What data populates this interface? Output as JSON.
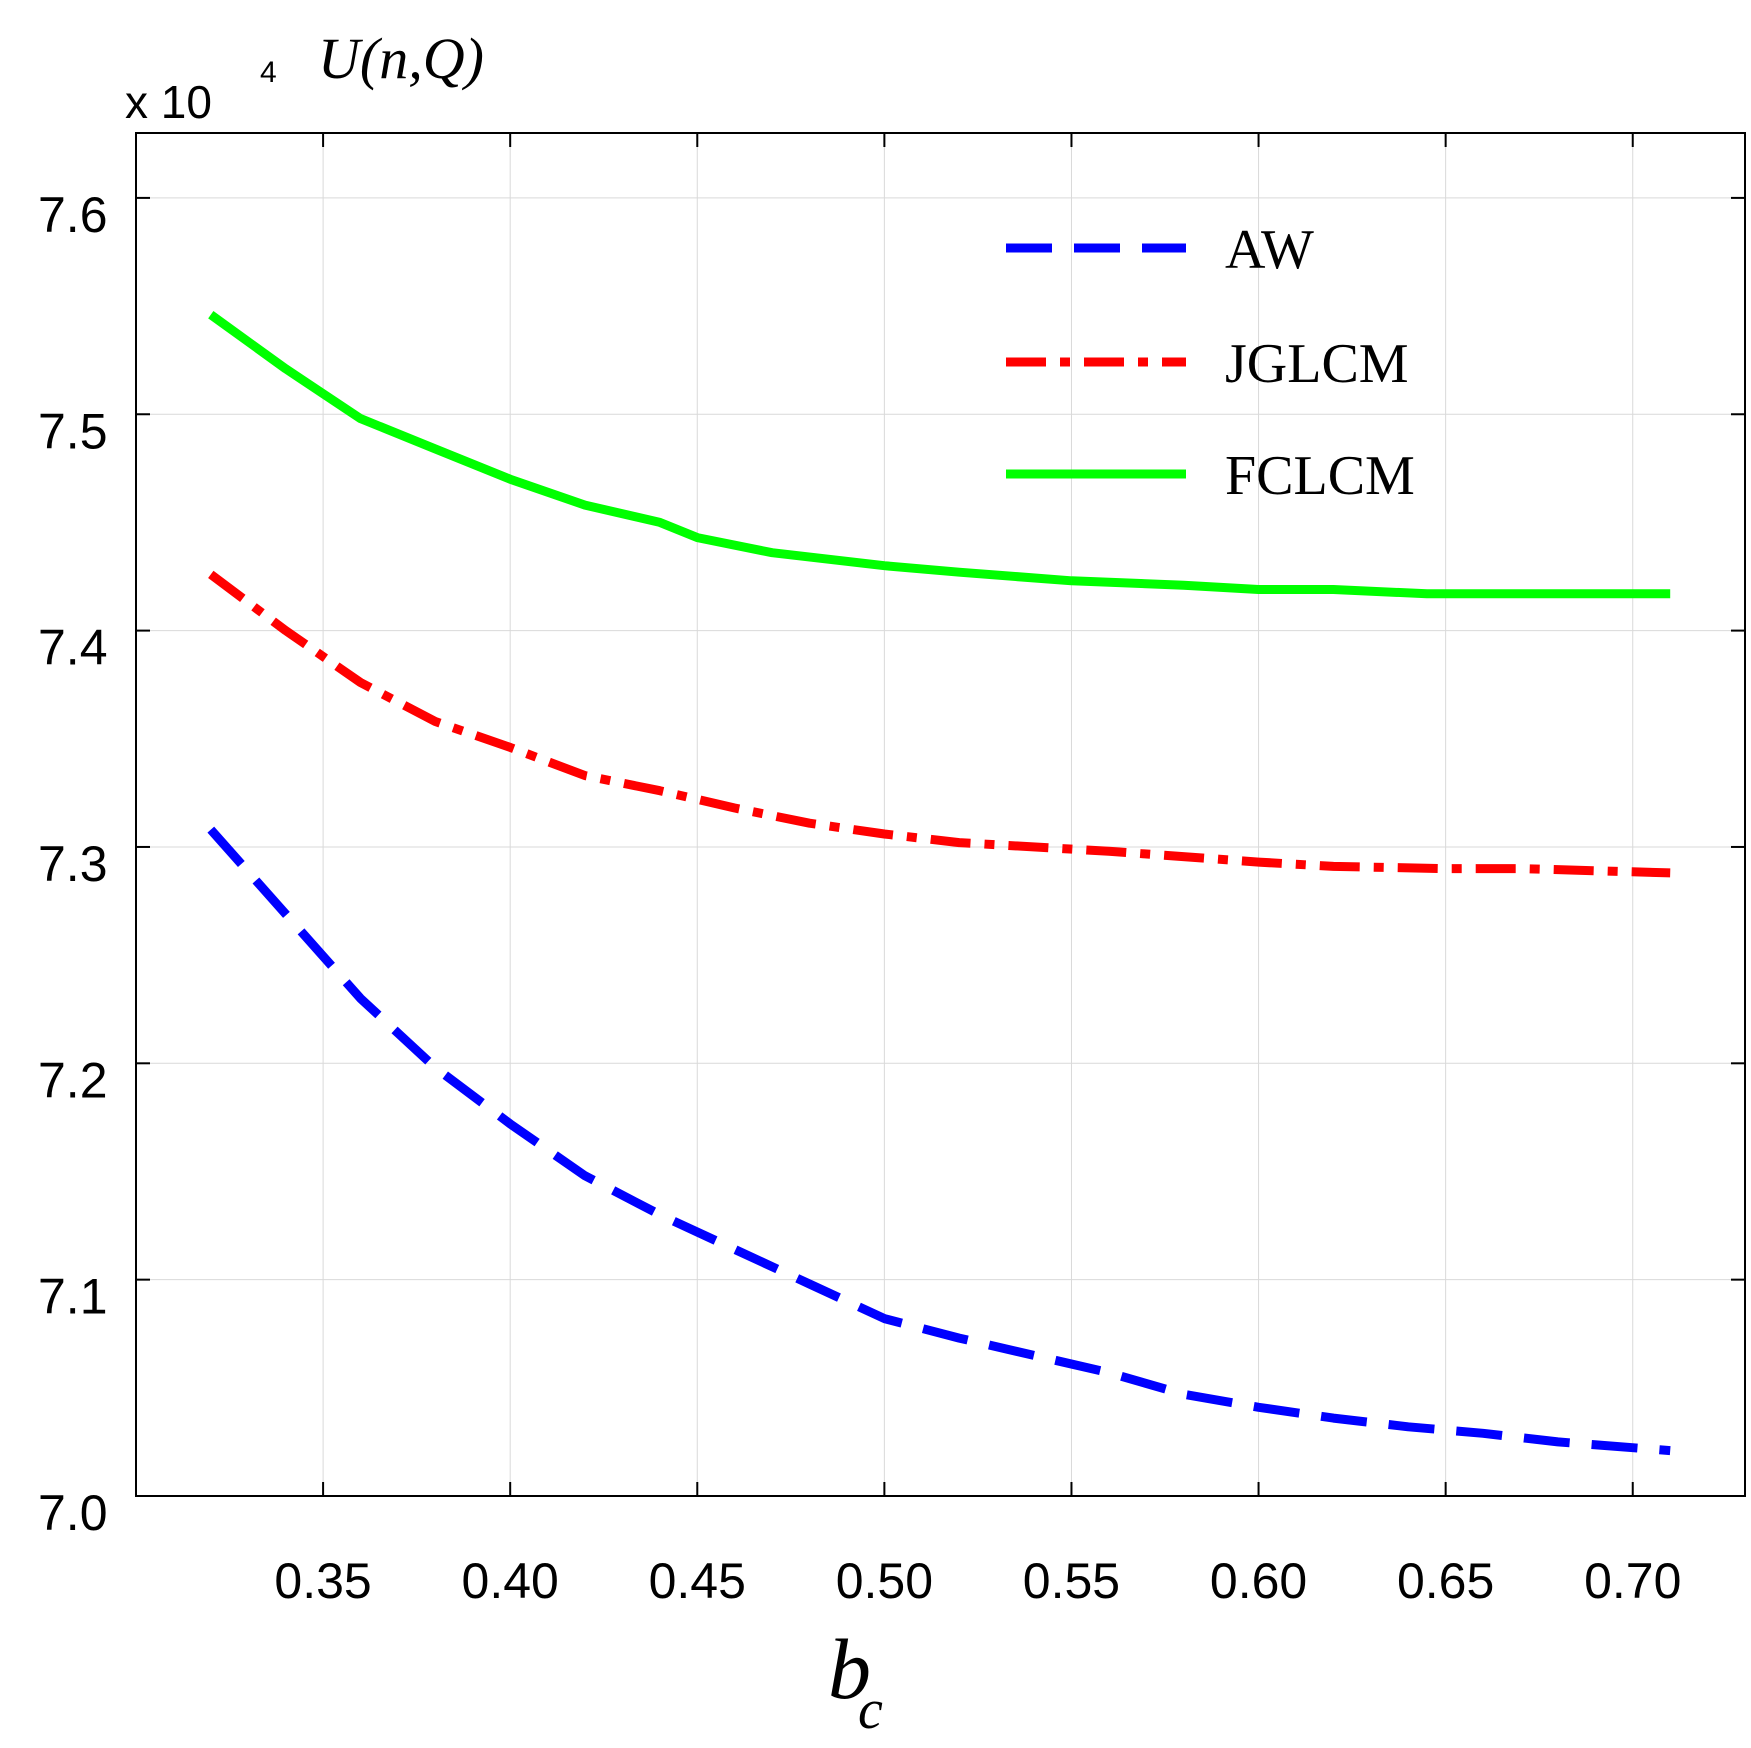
{
  "chart_data": {
    "type": "line",
    "title": "",
    "ylabel": "U(n,Q)",
    "y_scale_label": "x 10",
    "y_scale_exponent": "4",
    "xlabel_main": "b",
    "xlabel_sub": "c",
    "xlim": [
      0.3,
      0.73
    ],
    "ylim": [
      7.0,
      7.63
    ],
    "xticks": [
      "0.35",
      "0.40",
      "0.45",
      "0.50",
      "0.55",
      "0.60",
      "0.65",
      "0.70"
    ],
    "yticks": [
      "7.0",
      "7.1",
      "7.2",
      "7.3",
      "7.4",
      "7.5",
      "7.6"
    ],
    "legend_position": "top-right",
    "series": [
      {
        "name": "AW",
        "color": "#0000ff",
        "style": "dashed",
        "x": [
          0.32,
          0.36,
          0.38,
          0.4,
          0.42,
          0.44,
          0.48,
          0.5,
          0.52,
          0.56,
          0.58,
          0.6,
          0.62,
          0.64,
          0.66,
          0.68,
          0.71
        ],
        "values": [
          7.308,
          7.23,
          7.198,
          7.172,
          7.148,
          7.13,
          7.098,
          7.082,
          7.073,
          7.057,
          7.047,
          7.041,
          7.036,
          7.032,
          7.029,
          7.025,
          7.021
        ]
      },
      {
        "name": "JGLCM",
        "color": "#ff0000",
        "style": "dashdot",
        "x": [
          0.32,
          0.34,
          0.36,
          0.38,
          0.4,
          0.42,
          0.44,
          0.46,
          0.48,
          0.5,
          0.52,
          0.56,
          0.6,
          0.62,
          0.65,
          0.67,
          0.71
        ],
        "values": [
          7.426,
          7.4,
          7.376,
          7.358,
          7.346,
          7.333,
          7.326,
          7.318,
          7.311,
          7.306,
          7.302,
          7.298,
          7.293,
          7.291,
          7.29,
          7.29,
          7.288
        ]
      },
      {
        "name": "FCLCM",
        "color": "#00ff00",
        "style": "solid",
        "x": [
          0.32,
          0.34,
          0.36,
          0.38,
          0.4,
          0.42,
          0.44,
          0.45,
          0.47,
          0.5,
          0.52,
          0.55,
          0.58,
          0.6,
          0.62,
          0.645,
          0.71
        ],
        "values": [
          7.546,
          7.521,
          7.498,
          7.484,
          7.47,
          7.458,
          7.45,
          7.443,
          7.436,
          7.43,
          7.427,
          7.423,
          7.421,
          7.419,
          7.419,
          7.417,
          7.417
        ]
      }
    ]
  }
}
